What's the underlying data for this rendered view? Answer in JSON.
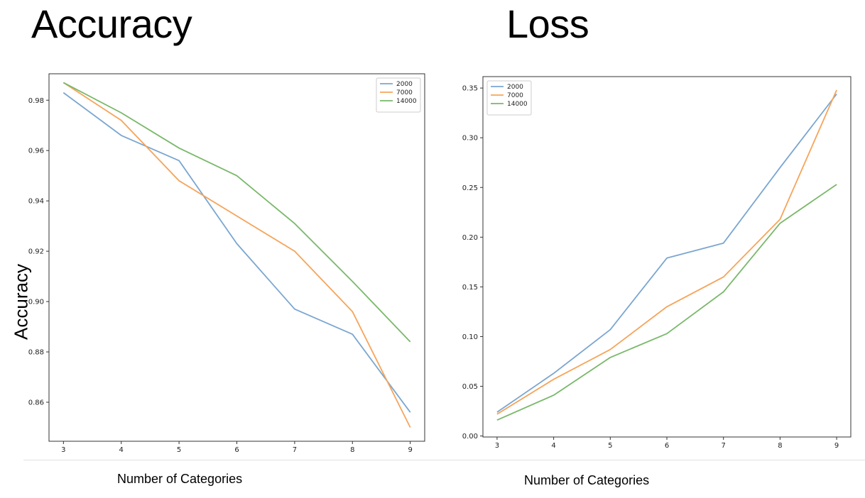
{
  "colors": {
    "2000": "#7aa6d0",
    "7000": "#f6a45a",
    "14000": "#79b86a"
  },
  "text": {
    "left_heading": "Accuracy",
    "right_heading": "Loss",
    "left_ylabel": "Accuracy",
    "left_xlabel": "Number of Categories",
    "right_xlabel": "Number of Categories"
  },
  "chart_data": [
    {
      "type": "line",
      "title": "Accuracy",
      "xlabel": "Number of Categories",
      "ylabel": "Accuracy",
      "x": [
        3,
        4,
        5,
        6,
        7,
        8,
        9
      ],
      "xlim": [
        2.75,
        9.25
      ],
      "ylim": [
        0.8445,
        0.9905
      ],
      "yticks": [
        0.86,
        0.88,
        0.9,
        0.92,
        0.94,
        0.96,
        0.98
      ],
      "ytick_labels": [
        "0.86",
        "0.88",
        "0.90",
        "0.92",
        "0.94",
        "0.96",
        "0.98"
      ],
      "xticks": [
        3,
        4,
        5,
        6,
        7,
        8,
        9
      ],
      "xtick_labels": [
        "3",
        "4",
        "5",
        "6",
        "7",
        "8",
        "9"
      ],
      "grid": false,
      "legend_placement": "top-right",
      "series": [
        {
          "name": "2000",
          "color_key": "2000",
          "values": [
            0.983,
            0.966,
            0.956,
            0.923,
            0.897,
            0.887,
            0.856
          ]
        },
        {
          "name": "7000",
          "color_key": "7000",
          "values": [
            0.987,
            0.972,
            0.948,
            0.934,
            0.92,
            0.896,
            0.85
          ]
        },
        {
          "name": "14000",
          "color_key": "14000",
          "values": [
            0.987,
            0.975,
            0.961,
            0.95,
            0.931,
            0.908,
            0.884
          ]
        }
      ]
    },
    {
      "type": "line",
      "title": "Loss",
      "xlabel": "Number of Categories",
      "ylabel": "",
      "x": [
        3,
        4,
        5,
        6,
        7,
        8,
        9
      ],
      "xlim": [
        2.75,
        9.25
      ],
      "ylim": [
        -0.001,
        0.3615
      ],
      "yticks": [
        0.0,
        0.05,
        0.1,
        0.15,
        0.2,
        0.25,
        0.3,
        0.35
      ],
      "ytick_labels": [
        "0.00",
        "0.05",
        "0.10",
        "0.15",
        "0.20",
        "0.25",
        "0.30",
        "0.35"
      ],
      "xticks": [
        3,
        4,
        5,
        6,
        7,
        8,
        9
      ],
      "xtick_labels": [
        "3",
        "4",
        "5",
        "6",
        "7",
        "8",
        "9"
      ],
      "grid": false,
      "legend_placement": "top-left",
      "series": [
        {
          "name": "2000",
          "color_key": "2000",
          "values": [
            0.024,
            0.063,
            0.107,
            0.179,
            0.194,
            0.27,
            0.344
          ]
        },
        {
          "name": "7000",
          "color_key": "7000",
          "values": [
            0.022,
            0.057,
            0.087,
            0.13,
            0.16,
            0.218,
            0.348
          ]
        },
        {
          "name": "14000",
          "color_key": "14000",
          "values": [
            0.016,
            0.041,
            0.079,
            0.103,
            0.145,
            0.214,
            0.253
          ]
        }
      ]
    }
  ]
}
